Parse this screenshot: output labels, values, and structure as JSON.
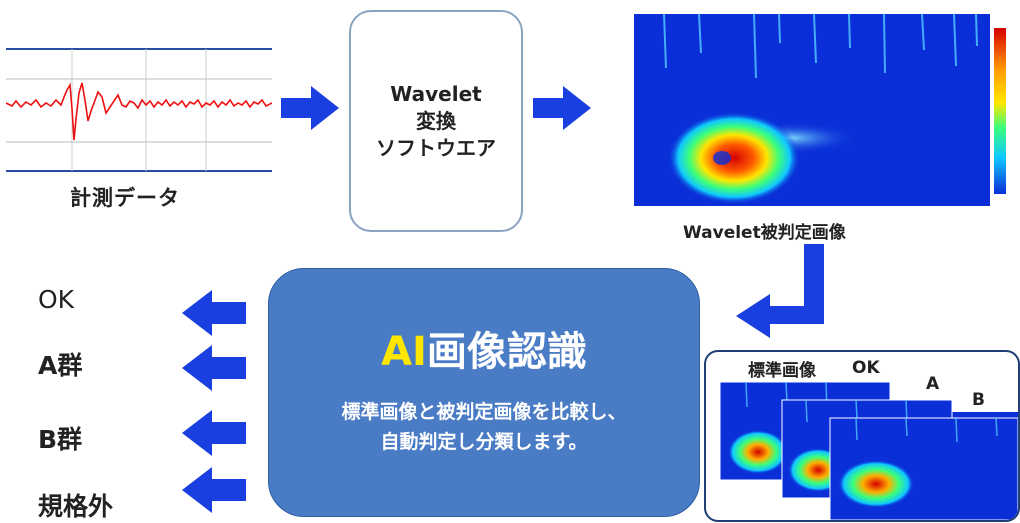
{
  "measurement": {
    "label": "計測データ"
  },
  "software": {
    "line1": "Wavelet",
    "line2": "変換",
    "line3": "ソフトウエア"
  },
  "wavelet_image": {
    "caption": "Wavelet被判定画像"
  },
  "ai": {
    "title_accent": "AI",
    "title_rest": "画像認識",
    "desc_line1": "標準画像と被判定画像を比較し、",
    "desc_line2": "自動判定し分類します。"
  },
  "outputs": [
    "OK",
    "A群",
    "B群",
    "規格外"
  ],
  "standard_images": {
    "title": "標準画像",
    "ok": "OK",
    "a": "A",
    "b": "B"
  },
  "colors": {
    "arrow": "#1a3fe0",
    "ai_box": "#4a7cc5",
    "ai_accent": "#ffe600",
    "heatmap_bg": "#0a2fd8"
  }
}
